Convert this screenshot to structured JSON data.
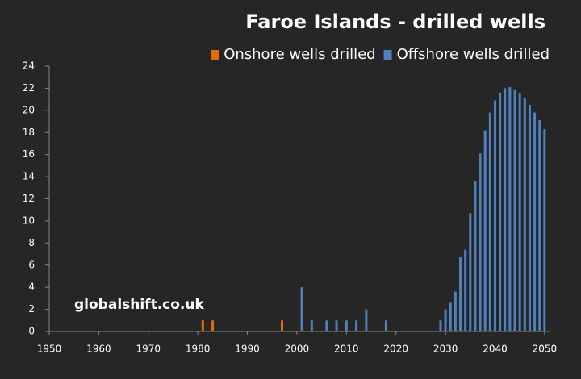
{
  "chart_data": {
    "type": "bar",
    "title": "Faroe Islands - drilled wells",
    "annotation": "globalshift.co.uk",
    "series": [
      {
        "name": "Onshore wells drilled",
        "color": "#e36c0a",
        "x": [
          1981,
          1983,
          1997
        ],
        "values": [
          1,
          1,
          1
        ]
      },
      {
        "name": "Offshore wells drilled",
        "color": "#4f81bd",
        "x": [
          2001,
          2003,
          2006,
          2008,
          2010,
          2012,
          2014,
          2018,
          2029,
          2030,
          2031,
          2032,
          2033,
          2034,
          2035,
          2036,
          2037,
          2038,
          2039,
          2040,
          2041,
          2042,
          2043,
          2044,
          2045,
          2046,
          2047,
          2048,
          2049,
          2050
        ],
        "values": [
          4,
          1,
          1,
          1,
          1,
          1,
          2,
          1,
          1,
          2,
          2.6,
          3.6,
          6.7,
          7.4,
          10.7,
          13.6,
          16.1,
          18.2,
          19.8,
          20.9,
          21.6,
          22,
          22.1,
          21.9,
          21.6,
          21.1,
          20.5,
          19.8,
          19.1,
          18.3
        ]
      }
    ],
    "xlim": [
      1950,
      2051
    ],
    "xticks": [
      1950,
      1960,
      1970,
      1980,
      1990,
      2000,
      2010,
      2020,
      2030,
      2040,
      2050
    ],
    "ylim": [
      0,
      24
    ],
    "yticks": [
      0,
      2,
      4,
      6,
      8,
      10,
      12,
      14,
      16,
      18,
      20,
      22,
      24
    ],
    "legend": "top-right"
  }
}
